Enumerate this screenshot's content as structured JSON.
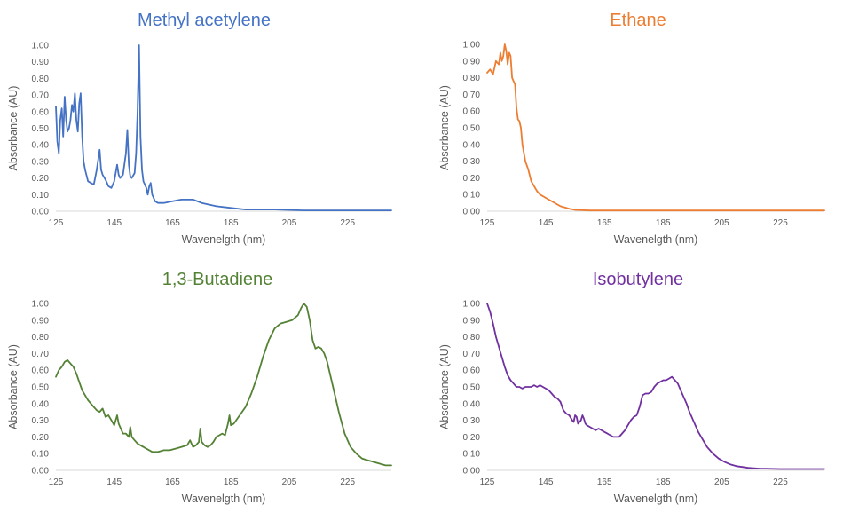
{
  "chart_data": [
    {
      "type": "line",
      "title": "Methyl acetylene",
      "color": "#4472c4",
      "xlabel": "Wavenelgth (nm)",
      "ylabel": "Absorbance (AU)",
      "xlim": [
        125,
        240
      ],
      "ylim": [
        0,
        1
      ],
      "xticks": [
        "125",
        "145",
        "165",
        "185",
        "205",
        "225"
      ],
      "yticks": [
        "0.00",
        "0.10",
        "0.20",
        "0.30",
        "0.40",
        "0.50",
        "0.60",
        "0.70",
        "0.80",
        "0.90",
        "1.00"
      ],
      "grid": false,
      "legend": "none",
      "x": [
        125,
        125.5,
        126,
        126.5,
        127,
        127.5,
        128,
        128.5,
        129,
        129.5,
        130,
        130.5,
        131,
        131.5,
        132,
        132.5,
        133,
        133.5,
        134,
        134.5,
        135,
        136,
        137,
        138,
        139,
        140,
        140.5,
        141,
        142,
        143,
        144,
        145,
        146,
        146.5,
        147,
        148,
        149,
        149.5,
        150,
        150.5,
        151,
        152,
        152.5,
        153,
        153.5,
        154,
        154.5,
        155,
        156,
        156.5,
        157,
        157.5,
        158,
        159,
        160,
        162,
        165,
        168,
        170,
        172,
        175,
        180,
        185,
        190,
        195,
        200,
        210,
        220,
        230,
        240
      ],
      "y": [
        0.63,
        0.42,
        0.35,
        0.55,
        0.62,
        0.45,
        0.69,
        0.55,
        0.48,
        0.5,
        0.55,
        0.64,
        0.6,
        0.71,
        0.55,
        0.48,
        0.65,
        0.71,
        0.45,
        0.3,
        0.25,
        0.18,
        0.17,
        0.16,
        0.25,
        0.37,
        0.25,
        0.22,
        0.19,
        0.15,
        0.14,
        0.18,
        0.28,
        0.22,
        0.2,
        0.22,
        0.35,
        0.49,
        0.28,
        0.21,
        0.2,
        0.23,
        0.35,
        0.6,
        1.0,
        0.45,
        0.25,
        0.18,
        0.14,
        0.1,
        0.15,
        0.17,
        0.1,
        0.06,
        0.05,
        0.05,
        0.06,
        0.07,
        0.07,
        0.07,
        0.05,
        0.03,
        0.02,
        0.01,
        0.01,
        0.01,
        0.005,
        0.005,
        0.005,
        0.005
      ]
    },
    {
      "type": "line",
      "title": "Ethane",
      "color": "#ed7d31",
      "xlabel": "Wavenelgth (nm)",
      "ylabel": "Absorbance (AU)",
      "xlim": [
        125,
        240
      ],
      "ylim": [
        0,
        1
      ],
      "xticks": [
        "125",
        "145",
        "165",
        "185",
        "205",
        "225"
      ],
      "yticks": [
        "0.00",
        "0.10",
        "0.20",
        "0.30",
        "0.40",
        "0.50",
        "0.60",
        "0.70",
        "0.80",
        "0.90",
        "1.00"
      ],
      "grid": false,
      "legend": "none",
      "x": [
        125,
        126,
        127,
        128,
        129,
        129.5,
        130,
        130.5,
        131,
        131.5,
        132,
        132.5,
        133,
        133.5,
        134,
        134.5,
        135,
        135.5,
        136,
        136.5,
        137,
        138,
        139,
        140,
        141,
        142,
        143,
        145,
        148,
        150,
        153,
        155,
        160,
        170,
        180,
        200,
        220,
        240
      ],
      "y": [
        0.83,
        0.85,
        0.82,
        0.9,
        0.88,
        0.95,
        0.9,
        0.93,
        1.0,
        0.96,
        0.88,
        0.95,
        0.93,
        0.8,
        0.78,
        0.76,
        0.62,
        0.55,
        0.54,
        0.5,
        0.4,
        0.3,
        0.25,
        0.18,
        0.15,
        0.12,
        0.1,
        0.08,
        0.05,
        0.03,
        0.015,
        0.008,
        0.004,
        0.004,
        0.004,
        0.004,
        0.004,
        0.004
      ]
    },
    {
      "type": "line",
      "title": "1,3-Butadiene",
      "color": "#548235",
      "xlabel": "Wavenelgth (nm)",
      "ylabel": "Absorbance (AU)",
      "xlim": [
        125,
        240
      ],
      "ylim": [
        0,
        1
      ],
      "xticks": [
        "125",
        "145",
        "165",
        "185",
        "205",
        "225"
      ],
      "yticks": [
        "0.00",
        "0.10",
        "0.20",
        "0.30",
        "0.40",
        "0.50",
        "0.60",
        "0.70",
        "0.80",
        "0.90",
        "1.00"
      ],
      "grid": false,
      "legend": "none",
      "x": [
        125,
        126,
        127,
        128,
        129,
        130,
        131,
        132,
        133,
        134,
        135,
        136,
        137,
        138,
        139,
        140,
        141,
        142,
        143,
        144,
        145,
        146,
        146.5,
        147,
        148,
        149,
        150,
        150.5,
        151,
        152,
        153,
        154,
        155,
        156,
        157,
        158,
        159,
        160,
        162,
        164,
        166,
        168,
        170,
        171,
        172,
        173,
        174,
        174.5,
        175,
        176,
        177,
        178,
        179,
        180,
        181,
        182,
        183,
        184,
        184.5,
        185,
        186,
        188,
        190,
        192,
        194,
        196,
        198,
        200,
        202,
        204,
        206,
        208,
        209,
        210,
        211,
        212,
        213,
        214,
        215,
        216,
        217,
        218,
        220,
        222,
        224,
        226,
        228,
        230,
        232,
        234,
        236,
        238,
        240
      ],
      "y": [
        0.56,
        0.6,
        0.62,
        0.65,
        0.66,
        0.64,
        0.62,
        0.58,
        0.53,
        0.48,
        0.45,
        0.42,
        0.4,
        0.38,
        0.36,
        0.35,
        0.37,
        0.32,
        0.33,
        0.3,
        0.27,
        0.33,
        0.28,
        0.26,
        0.22,
        0.22,
        0.2,
        0.26,
        0.2,
        0.18,
        0.16,
        0.15,
        0.14,
        0.13,
        0.12,
        0.11,
        0.11,
        0.11,
        0.12,
        0.12,
        0.13,
        0.14,
        0.15,
        0.18,
        0.14,
        0.15,
        0.17,
        0.25,
        0.17,
        0.15,
        0.14,
        0.15,
        0.17,
        0.2,
        0.21,
        0.22,
        0.21,
        0.28,
        0.33,
        0.27,
        0.28,
        0.33,
        0.38,
        0.46,
        0.56,
        0.68,
        0.78,
        0.85,
        0.88,
        0.89,
        0.9,
        0.93,
        0.97,
        1.0,
        0.98,
        0.9,
        0.78,
        0.73,
        0.74,
        0.73,
        0.7,
        0.65,
        0.5,
        0.35,
        0.22,
        0.14,
        0.1,
        0.07,
        0.06,
        0.05,
        0.04,
        0.03,
        0.03
      ]
    },
    {
      "type": "line",
      "title": "Isobutylene",
      "color": "#7030a0",
      "xlabel": "Wavenelgth (nm)",
      "ylabel": "Absorbance (AU)",
      "xlim": [
        125,
        240
      ],
      "ylim": [
        0,
        1
      ],
      "xticks": [
        "125",
        "145",
        "165",
        "185",
        "205",
        "225"
      ],
      "yticks": [
        "0.00",
        "0.10",
        "0.20",
        "0.30",
        "0.40",
        "0.50",
        "0.60",
        "0.70",
        "0.80",
        "0.90",
        "1.00"
      ],
      "grid": false,
      "legend": "none",
      "x": [
        125,
        126,
        127,
        128,
        129,
        130,
        131,
        132,
        133,
        134,
        135,
        136,
        137,
        138,
        139,
        140,
        141,
        142,
        143,
        144,
        145,
        146,
        147,
        148,
        149,
        150,
        151,
        152,
        153,
        154,
        154.5,
        155,
        155.5,
        156,
        157,
        157.5,
        158,
        158.5,
        159,
        160,
        161,
        162,
        163,
        164,
        165,
        166,
        167,
        168,
        169,
        170,
        171,
        172,
        173,
        174,
        175,
        176,
        177,
        178,
        179,
        180,
        181,
        182,
        183,
        184,
        185,
        186,
        187,
        188,
        189,
        190,
        191,
        192,
        193,
        194,
        195,
        196,
        197,
        198,
        199,
        200,
        202,
        204,
        206,
        208,
        210,
        212,
        214,
        216,
        218,
        220,
        225,
        230,
        235,
        240
      ],
      "y": [
        1.0,
        0.95,
        0.88,
        0.8,
        0.74,
        0.68,
        0.62,
        0.57,
        0.54,
        0.52,
        0.5,
        0.5,
        0.49,
        0.5,
        0.5,
        0.5,
        0.51,
        0.5,
        0.51,
        0.5,
        0.49,
        0.48,
        0.46,
        0.44,
        0.43,
        0.41,
        0.36,
        0.34,
        0.33,
        0.3,
        0.29,
        0.33,
        0.32,
        0.28,
        0.3,
        0.33,
        0.31,
        0.28,
        0.27,
        0.26,
        0.25,
        0.24,
        0.25,
        0.24,
        0.23,
        0.22,
        0.21,
        0.2,
        0.2,
        0.2,
        0.22,
        0.24,
        0.27,
        0.3,
        0.32,
        0.33,
        0.38,
        0.45,
        0.46,
        0.46,
        0.47,
        0.5,
        0.52,
        0.53,
        0.54,
        0.54,
        0.55,
        0.56,
        0.54,
        0.52,
        0.48,
        0.44,
        0.4,
        0.35,
        0.31,
        0.27,
        0.23,
        0.2,
        0.17,
        0.14,
        0.1,
        0.07,
        0.05,
        0.035,
        0.025,
        0.02,
        0.015,
        0.012,
        0.01,
        0.01,
        0.008,
        0.008,
        0.008,
        0.008
      ]
    }
  ]
}
